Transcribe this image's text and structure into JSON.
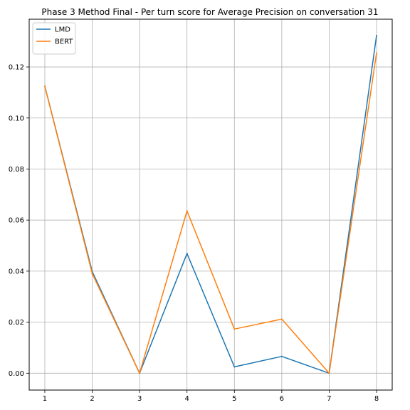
{
  "chart_data": {
    "type": "line",
    "title": "Phase 3 Method Final - Per turn score for Average Precision on conversation 31",
    "xlabel": "",
    "ylabel": "",
    "x": [
      1,
      2,
      3,
      4,
      5,
      6,
      7,
      8
    ],
    "xlim": [
      0.67,
      8.33
    ],
    "ylim": [
      -0.0066,
      0.1387
    ],
    "yticks": [
      0.0,
      0.02,
      0.04,
      0.06,
      0.08,
      0.1,
      0.12
    ],
    "ytick_labels": [
      "0.00",
      "0.02",
      "0.04",
      "0.06",
      "0.08",
      "0.10",
      "0.12"
    ],
    "xtick_labels": [
      "1",
      "2",
      "3",
      "4",
      "5",
      "6",
      "7",
      "8"
    ],
    "grid": true,
    "legend_position": "top-left",
    "series": [
      {
        "name": "LMD",
        "color": "#1f77b4",
        "values": [
          0.1124,
          0.0398,
          0.0,
          0.0469,
          0.0025,
          0.0066,
          0.0,
          0.1323
        ]
      },
      {
        "name": "BERT",
        "color": "#ff7f0e",
        "values": [
          0.1124,
          0.039,
          0.0,
          0.0636,
          0.0173,
          0.0212,
          0.0,
          0.1255
        ]
      }
    ]
  }
}
